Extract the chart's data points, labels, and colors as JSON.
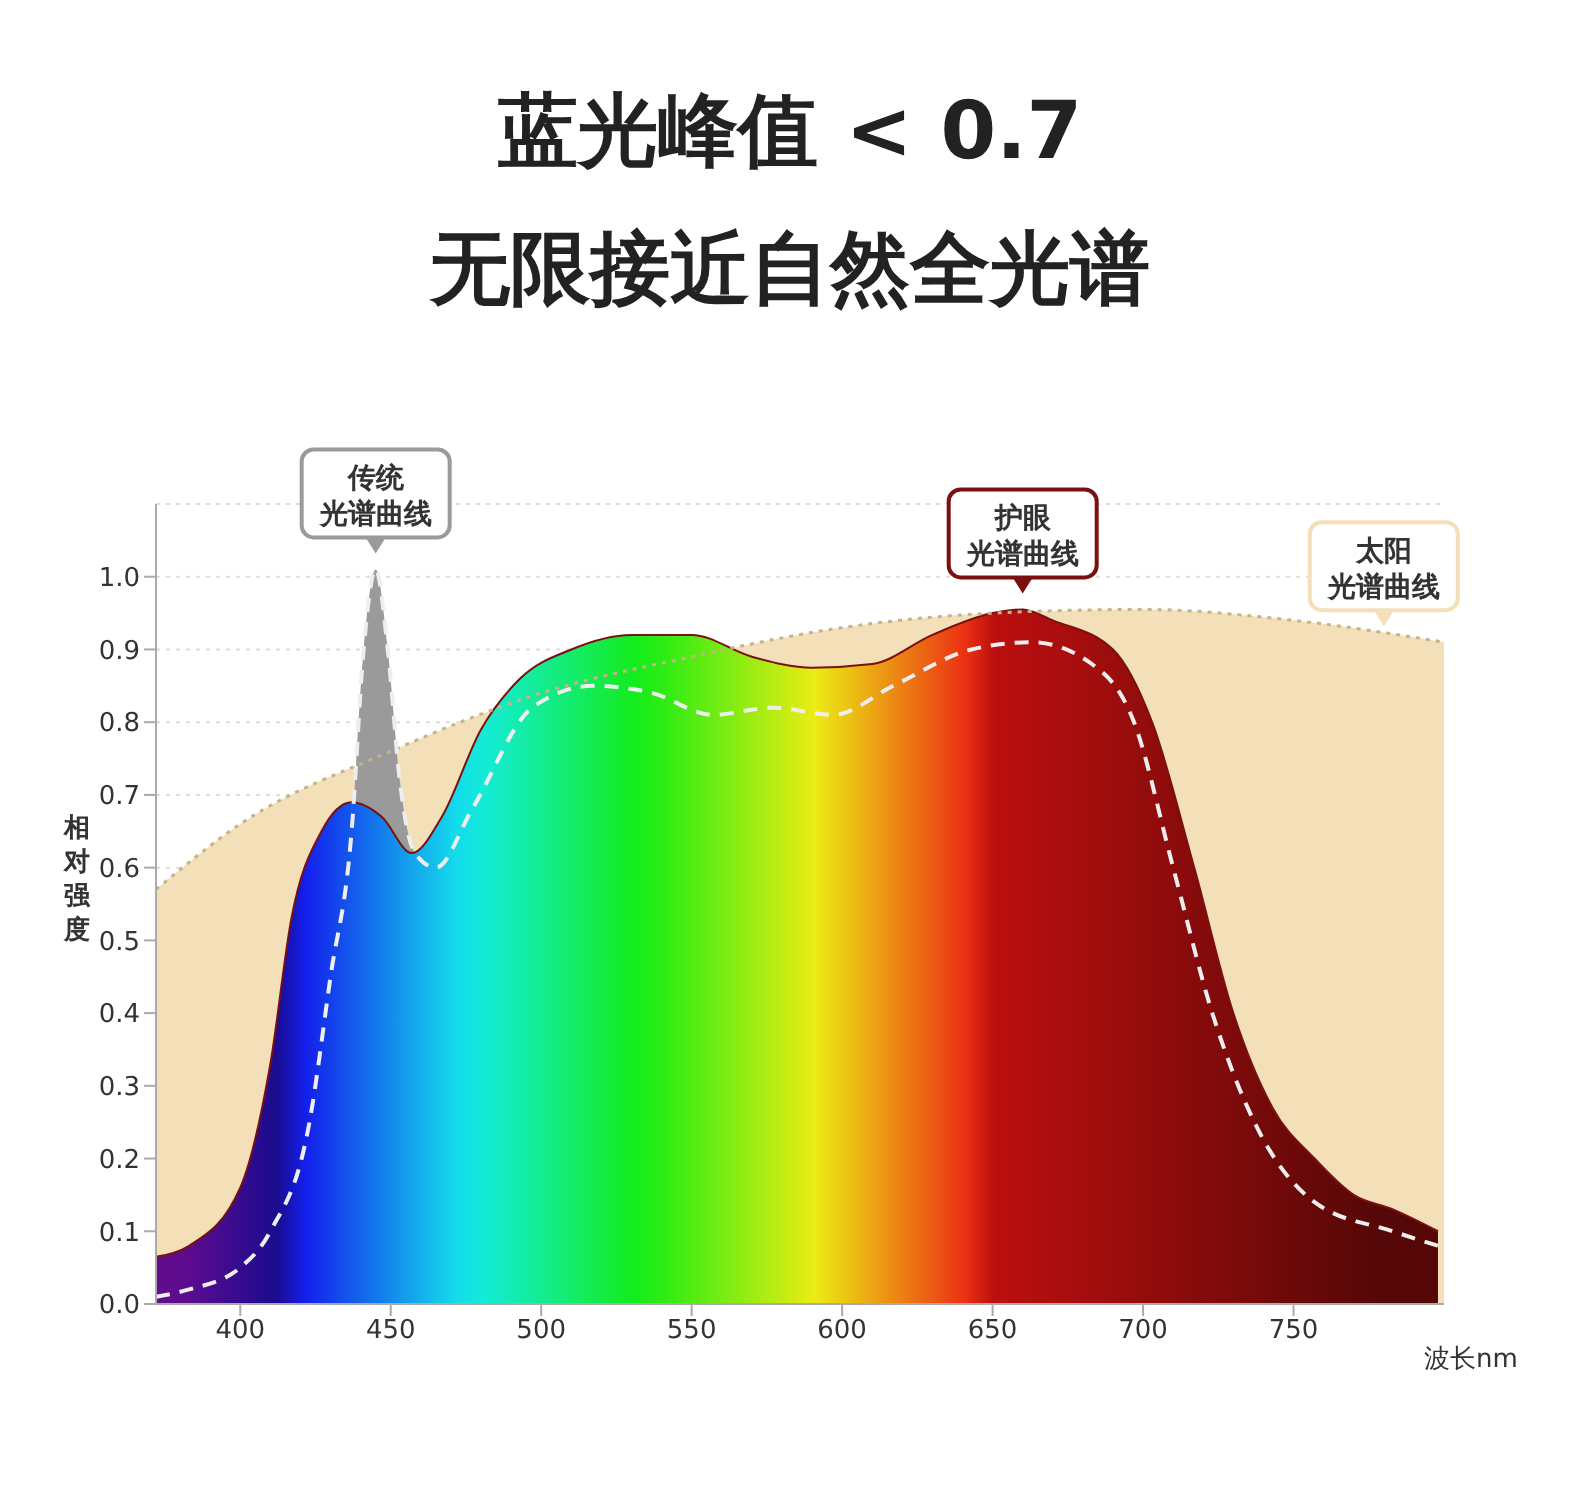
{
  "chart_data": {
    "type": "area",
    "title": "蓝光峰值 < 0.7",
    "subtitle": "无限接近自然全光谱",
    "xlabel": "波长nm",
    "ylabel": "相对强度",
    "xlim": [
      372,
      800
    ],
    "xticks": [
      400,
      450,
      500,
      550,
      600,
      650,
      700,
      750
    ],
    "ylim": [
      0,
      1.1
    ],
    "yticks": [
      {
        "value": 0,
        "label": "0.0"
      },
      0.1,
      0.2,
      0.3,
      0.4,
      0.5,
      0.6,
      0.7,
      0.8,
      0.9,
      {
        "value": 1,
        "label": "1.0"
      }
    ],
    "grid": "y",
    "series": [
      {
        "name": "太阳光谱曲线",
        "color": "#f3dfb8",
        "line_style": "dotted",
        "x": [
          372,
          400,
          450,
          500,
          550,
          600,
          650,
          700,
          750,
          800
        ],
        "values": [
          0.57,
          0.66,
          0.76,
          0.84,
          0.89,
          0.93,
          0.95,
          0.955,
          0.94,
          0.91
        ]
      },
      {
        "name": "传统光谱曲线",
        "color": "#9a9a9a",
        "line_style": "dashed",
        "x": [
          372,
          383,
          400,
          410,
          423,
          430,
          437,
          441,
          445,
          449,
          453,
          458,
          465,
          477,
          497,
          517,
          537,
          557,
          577,
          597,
          617,
          643,
          663,
          683,
          697,
          710,
          723,
          737,
          757,
          783,
          798
        ],
        "values": [
          0.01,
          0.02,
          0.05,
          0.1,
          0.25,
          0.45,
          0.65,
          0.9,
          1.01,
          0.9,
          0.72,
          0.62,
          0.6,
          0.68,
          0.82,
          0.85,
          0.84,
          0.81,
          0.82,
          0.81,
          0.85,
          0.9,
          0.91,
          0.88,
          0.8,
          0.6,
          0.4,
          0.25,
          0.14,
          0.1,
          0.08
        ]
      },
      {
        "name": "护眼光谱曲线",
        "color": "#7a1010",
        "line_style": "solid",
        "x": [
          372,
          383,
          400,
          410,
          417,
          427,
          437,
          447,
          457,
          467,
          480,
          493,
          510,
          530,
          550,
          570,
          590,
          610,
          630,
          650,
          660,
          670,
          690,
          703,
          717,
          730,
          743,
          757,
          770,
          783,
          798
        ],
        "values": [
          0.065,
          0.08,
          0.16,
          0.33,
          0.53,
          0.65,
          0.69,
          0.67,
          0.62,
          0.67,
          0.79,
          0.86,
          0.9,
          0.92,
          0.92,
          0.89,
          0.875,
          0.88,
          0.92,
          0.95,
          0.955,
          0.94,
          0.9,
          0.8,
          0.6,
          0.4,
          0.27,
          0.2,
          0.15,
          0.13,
          0.1
        ]
      }
    ]
  }
}
